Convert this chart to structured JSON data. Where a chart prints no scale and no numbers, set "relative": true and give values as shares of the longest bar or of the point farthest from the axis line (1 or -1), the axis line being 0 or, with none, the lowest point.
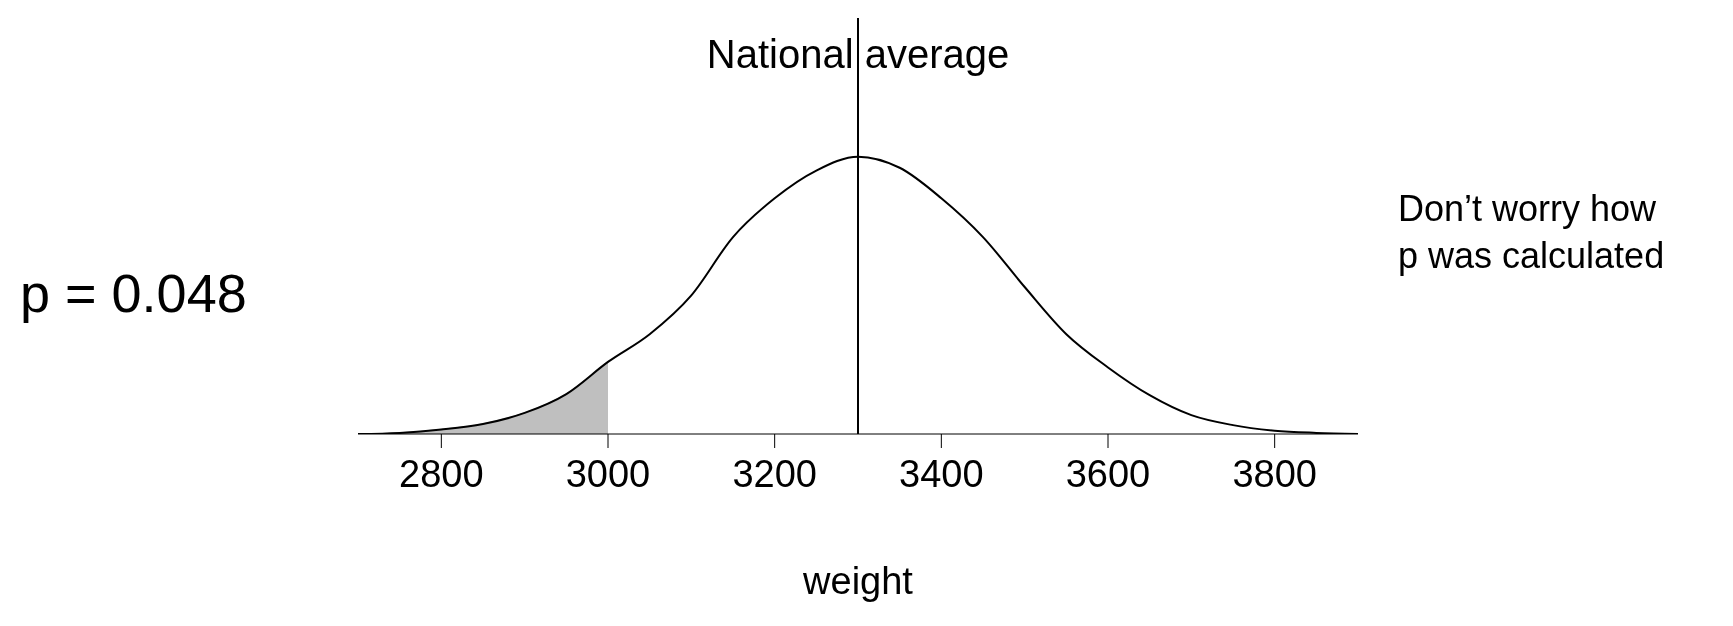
{
  "chart_data": {
    "type": "line",
    "relative": true,
    "xlabel": "weight",
    "xlim": [
      2700,
      3900
    ],
    "xticks": [
      2800,
      3000,
      3200,
      3400,
      3600,
      3800
    ],
    "marker": "none",
    "line_style": "solid",
    "grid": false,
    "legend": false,
    "series": [
      {
        "type": "area",
        "color": "#bfbfbf",
        "x": [
          2700,
          2750,
          2800,
          2850,
          2900,
          2950,
          3000
        ],
        "values": [
          0,
          0.004,
          0.016,
          0.036,
          0.076,
          0.144,
          0.26
        ]
      },
      {
        "color": "#000000",
        "x": [
          2700,
          2750,
          2800,
          2850,
          2900,
          2950,
          3000,
          3050,
          3100,
          3150,
          3200,
          3250,
          3300,
          3350,
          3400,
          3450,
          3500,
          3550,
          3600,
          3650,
          3700,
          3750,
          3800,
          3850,
          3900
        ],
        "values": [
          0,
          0.004,
          0.016,
          0.036,
          0.076,
          0.144,
          0.26,
          0.36,
          0.5,
          0.71,
          0.85,
          0.95,
          1,
          0.96,
          0.85,
          0.71,
          0.53,
          0.36,
          0.24,
          0.14,
          0.068,
          0.032,
          0.012,
          0.004,
          0
        ]
      }
    ],
    "ref_lines": [
      {
        "axis": "x",
        "value": 3300,
        "label": "National average",
        "color": "#000000"
      }
    ],
    "annotations": [
      "p = 0.048",
      "Don’t worry how p was calculated"
    ]
  }
}
